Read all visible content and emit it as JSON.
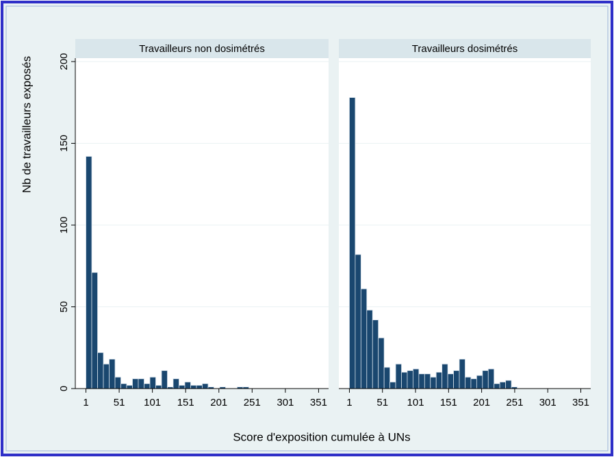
{
  "ylabel": "Nb de travailleurs exposés",
  "xlabel": "Score d'exposition cumulée à UNs",
  "chart_data": [
    {
      "type": "histogram",
      "title": "Travailleurs non dosimétrés",
      "color": "#1a476f",
      "bins": [
        1,
        9.75,
        18.5,
        27.25,
        36,
        44.75,
        53.5,
        62.25,
        71,
        79.75,
        88.5,
        97.25,
        106,
        114.75,
        123.5,
        132.25,
        141,
        149.75,
        158.5,
        167.25,
        176,
        184.75,
        193.5,
        202.25,
        211,
        219.75,
        228.5,
        237.25,
        246,
        254.75,
        263.5,
        272.25,
        281,
        289.75,
        298.5,
        307.25,
        316,
        324.75,
        333.5,
        342.25,
        351
      ],
      "values": [
        142,
        71,
        22,
        15,
        18,
        7,
        3,
        2,
        6,
        6,
        3,
        7,
        2,
        11,
        1,
        6,
        2,
        4,
        2,
        2,
        3,
        1,
        0,
        1,
        0,
        0,
        1,
        1,
        0,
        0,
        0,
        0,
        0,
        0,
        0,
        0,
        0,
        0,
        0,
        0
      ],
      "xlim": [
        -15,
        366
      ],
      "xticks": [
        1,
        51,
        101,
        151,
        201,
        251,
        301,
        351
      ],
      "ylim": [
        0,
        200
      ],
      "yticks": [
        0,
        50,
        100,
        150,
        200
      ],
      "grid": true
    },
    {
      "type": "histogram",
      "title": "Travailleurs dosimétrés",
      "color": "#1a476f",
      "bins": [
        1,
        9.75,
        18.5,
        27.25,
        36,
        44.75,
        53.5,
        62.25,
        71,
        79.75,
        88.5,
        97.25,
        106,
        114.75,
        123.5,
        132.25,
        141,
        149.75,
        158.5,
        167.25,
        176,
        184.75,
        193.5,
        202.25,
        211,
        219.75,
        228.5,
        237.25,
        246,
        254.75,
        263.5,
        272.25,
        281,
        289.75,
        298.5,
        307.25,
        316,
        324.75,
        333.5,
        342.25,
        351
      ],
      "values": [
        178,
        82,
        61,
        48,
        42,
        31,
        13,
        4,
        15,
        10,
        11,
        12,
        9,
        9,
        7,
        10,
        15,
        9,
        11,
        18,
        7,
        6,
        8,
        11,
        12,
        3,
        4,
        5,
        1,
        0,
        0,
        0,
        0,
        0,
        0,
        0,
        0,
        0,
        0,
        0
      ],
      "xlim": [
        -15,
        366
      ],
      "xticks": [
        1,
        51,
        101,
        151,
        201,
        251,
        301,
        351
      ],
      "ylim": [
        0,
        200
      ],
      "yticks": [
        0,
        50,
        100,
        150,
        200
      ],
      "grid": true
    }
  ]
}
